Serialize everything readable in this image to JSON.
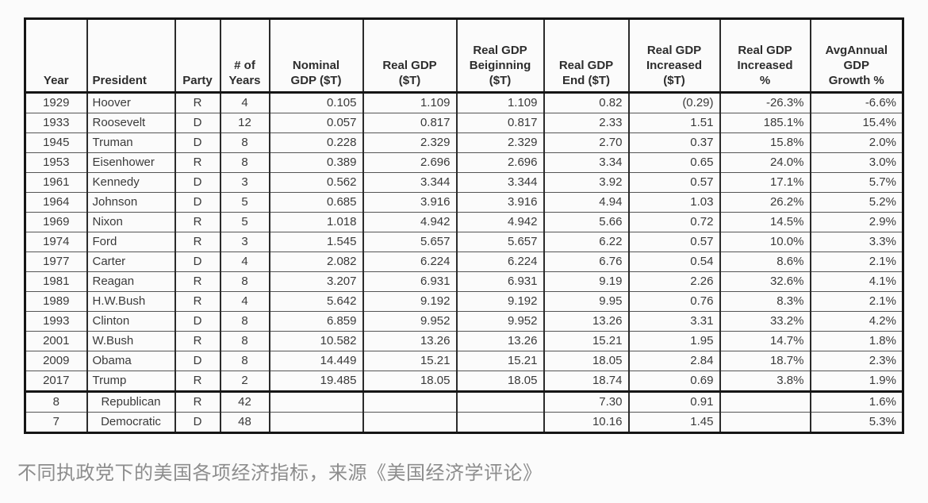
{
  "chart_data": {
    "type": "table",
    "columns": [
      "Year",
      "President",
      "Party",
      "# of\nYears",
      "Nominal\nGDP ($T)",
      "Real GDP\n($T)",
      "Real GDP\nBeiginning\n($T)",
      "Real GDP\nEnd ($T)",
      "Real GDP\nIncreased\n($T)",
      "Real GDP\nIncreased\n%",
      "AvgAnnual\nGDP\nGrowth %"
    ],
    "column_ids": [
      "year",
      "president",
      "party",
      "num-years",
      "nominal-gdp",
      "real-gdp",
      "real-gdp-beginning",
      "real-gdp-end",
      "real-gdp-increased",
      "real-gdp-increased-pct",
      "avg-annual-gdp-growth-pct"
    ],
    "rows": [
      [
        "1929",
        "Hoover",
        "R",
        "4",
        "0.105",
        "1.109",
        "1.109",
        "0.82",
        "(0.29)",
        "-26.3%",
        "-6.6%"
      ],
      [
        "1933",
        "Roosevelt",
        "D",
        "12",
        "0.057",
        "0.817",
        "0.817",
        "2.33",
        "1.51",
        "185.1%",
        "15.4%"
      ],
      [
        "1945",
        "Truman",
        "D",
        "8",
        "0.228",
        "2.329",
        "2.329",
        "2.70",
        "0.37",
        "15.8%",
        "2.0%"
      ],
      [
        "1953",
        "Eisenhower",
        "R",
        "8",
        "0.389",
        "2.696",
        "2.696",
        "3.34",
        "0.65",
        "24.0%",
        "3.0%"
      ],
      [
        "1961",
        "Kennedy",
        "D",
        "3",
        "0.562",
        "3.344",
        "3.344",
        "3.92",
        "0.57",
        "17.1%",
        "5.7%"
      ],
      [
        "1964",
        "Johnson",
        "D",
        "5",
        "0.685",
        "3.916",
        "3.916",
        "4.94",
        "1.03",
        "26.2%",
        "5.2%"
      ],
      [
        "1969",
        "Nixon",
        "R",
        "5",
        "1.018",
        "4.942",
        "4.942",
        "5.66",
        "0.72",
        "14.5%",
        "2.9%"
      ],
      [
        "1974",
        "Ford",
        "R",
        "3",
        "1.545",
        "5.657",
        "5.657",
        "6.22",
        "0.57",
        "10.0%",
        "3.3%"
      ],
      [
        "1977",
        "Carter",
        "D",
        "4",
        "2.082",
        "6.224",
        "6.224",
        "6.76",
        "0.54",
        "8.6%",
        "2.1%"
      ],
      [
        "1981",
        "Reagan",
        "R",
        "8",
        "3.207",
        "6.931",
        "6.931",
        "9.19",
        "2.26",
        "32.6%",
        "4.1%"
      ],
      [
        "1989",
        "H.W.Bush",
        "R",
        "4",
        "5.642",
        "9.192",
        "9.192",
        "9.95",
        "0.76",
        "8.3%",
        "2.1%"
      ],
      [
        "1993",
        "Clinton",
        "D",
        "8",
        "6.859",
        "9.952",
        "9.952",
        "13.26",
        "3.31",
        "33.2%",
        "4.2%"
      ],
      [
        "2001",
        "W.Bush",
        "R",
        "8",
        "10.582",
        "13.26",
        "13.26",
        "15.21",
        "1.95",
        "14.7%",
        "1.8%"
      ],
      [
        "2009",
        "Obama",
        "D",
        "8",
        "14.449",
        "15.21",
        "15.21",
        "18.05",
        "2.84",
        "18.7%",
        "2.3%"
      ],
      [
        "2017",
        "Trump",
        "R",
        "2",
        "19.485",
        "18.05",
        "18.05",
        "18.74",
        "0.69",
        "3.8%",
        "1.9%"
      ]
    ],
    "summary_rows": [
      [
        "8",
        "Republican",
        "R",
        "42",
        "",
        "",
        "",
        "7.30",
        "0.91",
        "",
        "1.6%"
      ],
      [
        "7",
        "Democratic",
        "D",
        "48",
        "",
        "",
        "",
        "10.16",
        "1.45",
        "",
        "5.3%"
      ]
    ]
  },
  "caption": "不同执政党下的美国各项经济指标，来源《美国经济学评论》"
}
